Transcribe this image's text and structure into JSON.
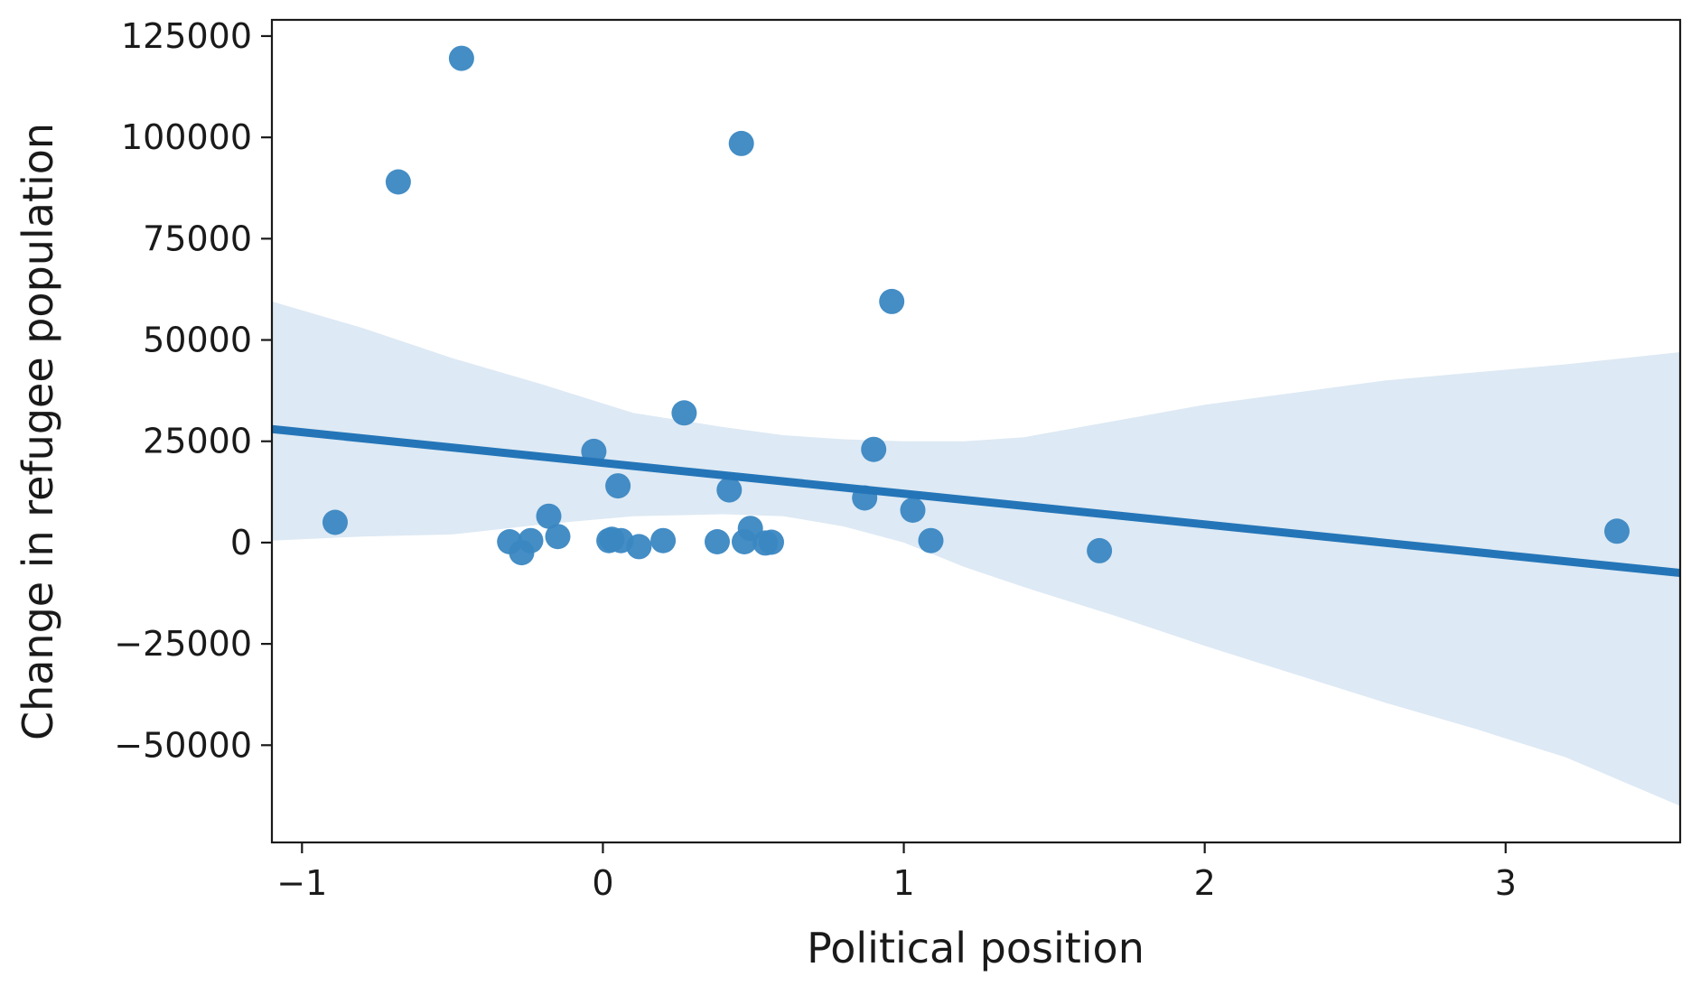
{
  "chart_data": {
    "type": "scatter",
    "xlabel": "Political position",
    "ylabel": "Change in refugee population",
    "xlim": [
      -1.1,
      3.58
    ],
    "ylim": [
      -74000,
      129000
    ],
    "xticks": [
      -1,
      0,
      1,
      2,
      3
    ],
    "yticks": [
      -50000,
      -25000,
      0,
      25000,
      50000,
      75000,
      100000,
      125000
    ],
    "grid": false,
    "legend": "none",
    "colors": {
      "points": "#3a87c2",
      "regression_line": "#2475b8",
      "confidence_band": "#dde9f4"
    },
    "points": [
      {
        "x": -0.89,
        "y": 5000
      },
      {
        "x": -0.68,
        "y": 89000
      },
      {
        "x": -0.47,
        "y": 119500
      },
      {
        "x": -0.31,
        "y": 200
      },
      {
        "x": -0.27,
        "y": -2500
      },
      {
        "x": -0.24,
        "y": 500
      },
      {
        "x": -0.18,
        "y": 6500
      },
      {
        "x": -0.15,
        "y": 1500
      },
      {
        "x": -0.03,
        "y": 22500
      },
      {
        "x": 0.02,
        "y": 500
      },
      {
        "x": 0.03,
        "y": 800
      },
      {
        "x": 0.05,
        "y": 14000
      },
      {
        "x": 0.06,
        "y": 500
      },
      {
        "x": 0.12,
        "y": -1000
      },
      {
        "x": 0.2,
        "y": 500
      },
      {
        "x": 0.27,
        "y": 32000
      },
      {
        "x": 0.38,
        "y": 200
      },
      {
        "x": 0.42,
        "y": 13000
      },
      {
        "x": 0.46,
        "y": 98500
      },
      {
        "x": 0.47,
        "y": 200
      },
      {
        "x": 0.49,
        "y": 3500
      },
      {
        "x": 0.54,
        "y": -100
      },
      {
        "x": 0.56,
        "y": 100
      },
      {
        "x": 0.87,
        "y": 11000
      },
      {
        "x": 0.9,
        "y": 23000
      },
      {
        "x": 0.96,
        "y": 59500
      },
      {
        "x": 1.03,
        "y": 8000
      },
      {
        "x": 1.09,
        "y": 500
      },
      {
        "x": 1.65,
        "y": -2000
      },
      {
        "x": 3.37,
        "y": 2800
      }
    ],
    "regression": {
      "x": [
        -1.1,
        3.58
      ],
      "y": [
        28000,
        -7500
      ]
    },
    "confidence_band": {
      "x": [
        -1.1,
        -0.8,
        -0.5,
        -0.2,
        0.1,
        0.4,
        0.6,
        0.8,
        1.0,
        1.2,
        1.4,
        1.7,
        2.0,
        2.3,
        2.6,
        2.9,
        3.2,
        3.58
      ],
      "upper": [
        59500,
        53000,
        45500,
        39000,
        32000,
        28500,
        26500,
        25500,
        25000,
        25000,
        26000,
        30000,
        34000,
        37000,
        40000,
        42000,
        44000,
        47000
      ],
      "lower": [
        500,
        1500,
        2000,
        4500,
        6500,
        7000,
        6500,
        4000,
        0,
        -6000,
        -11000,
        -18000,
        -25500,
        -32500,
        -39500,
        -46000,
        -53000,
        -65000
      ]
    }
  }
}
